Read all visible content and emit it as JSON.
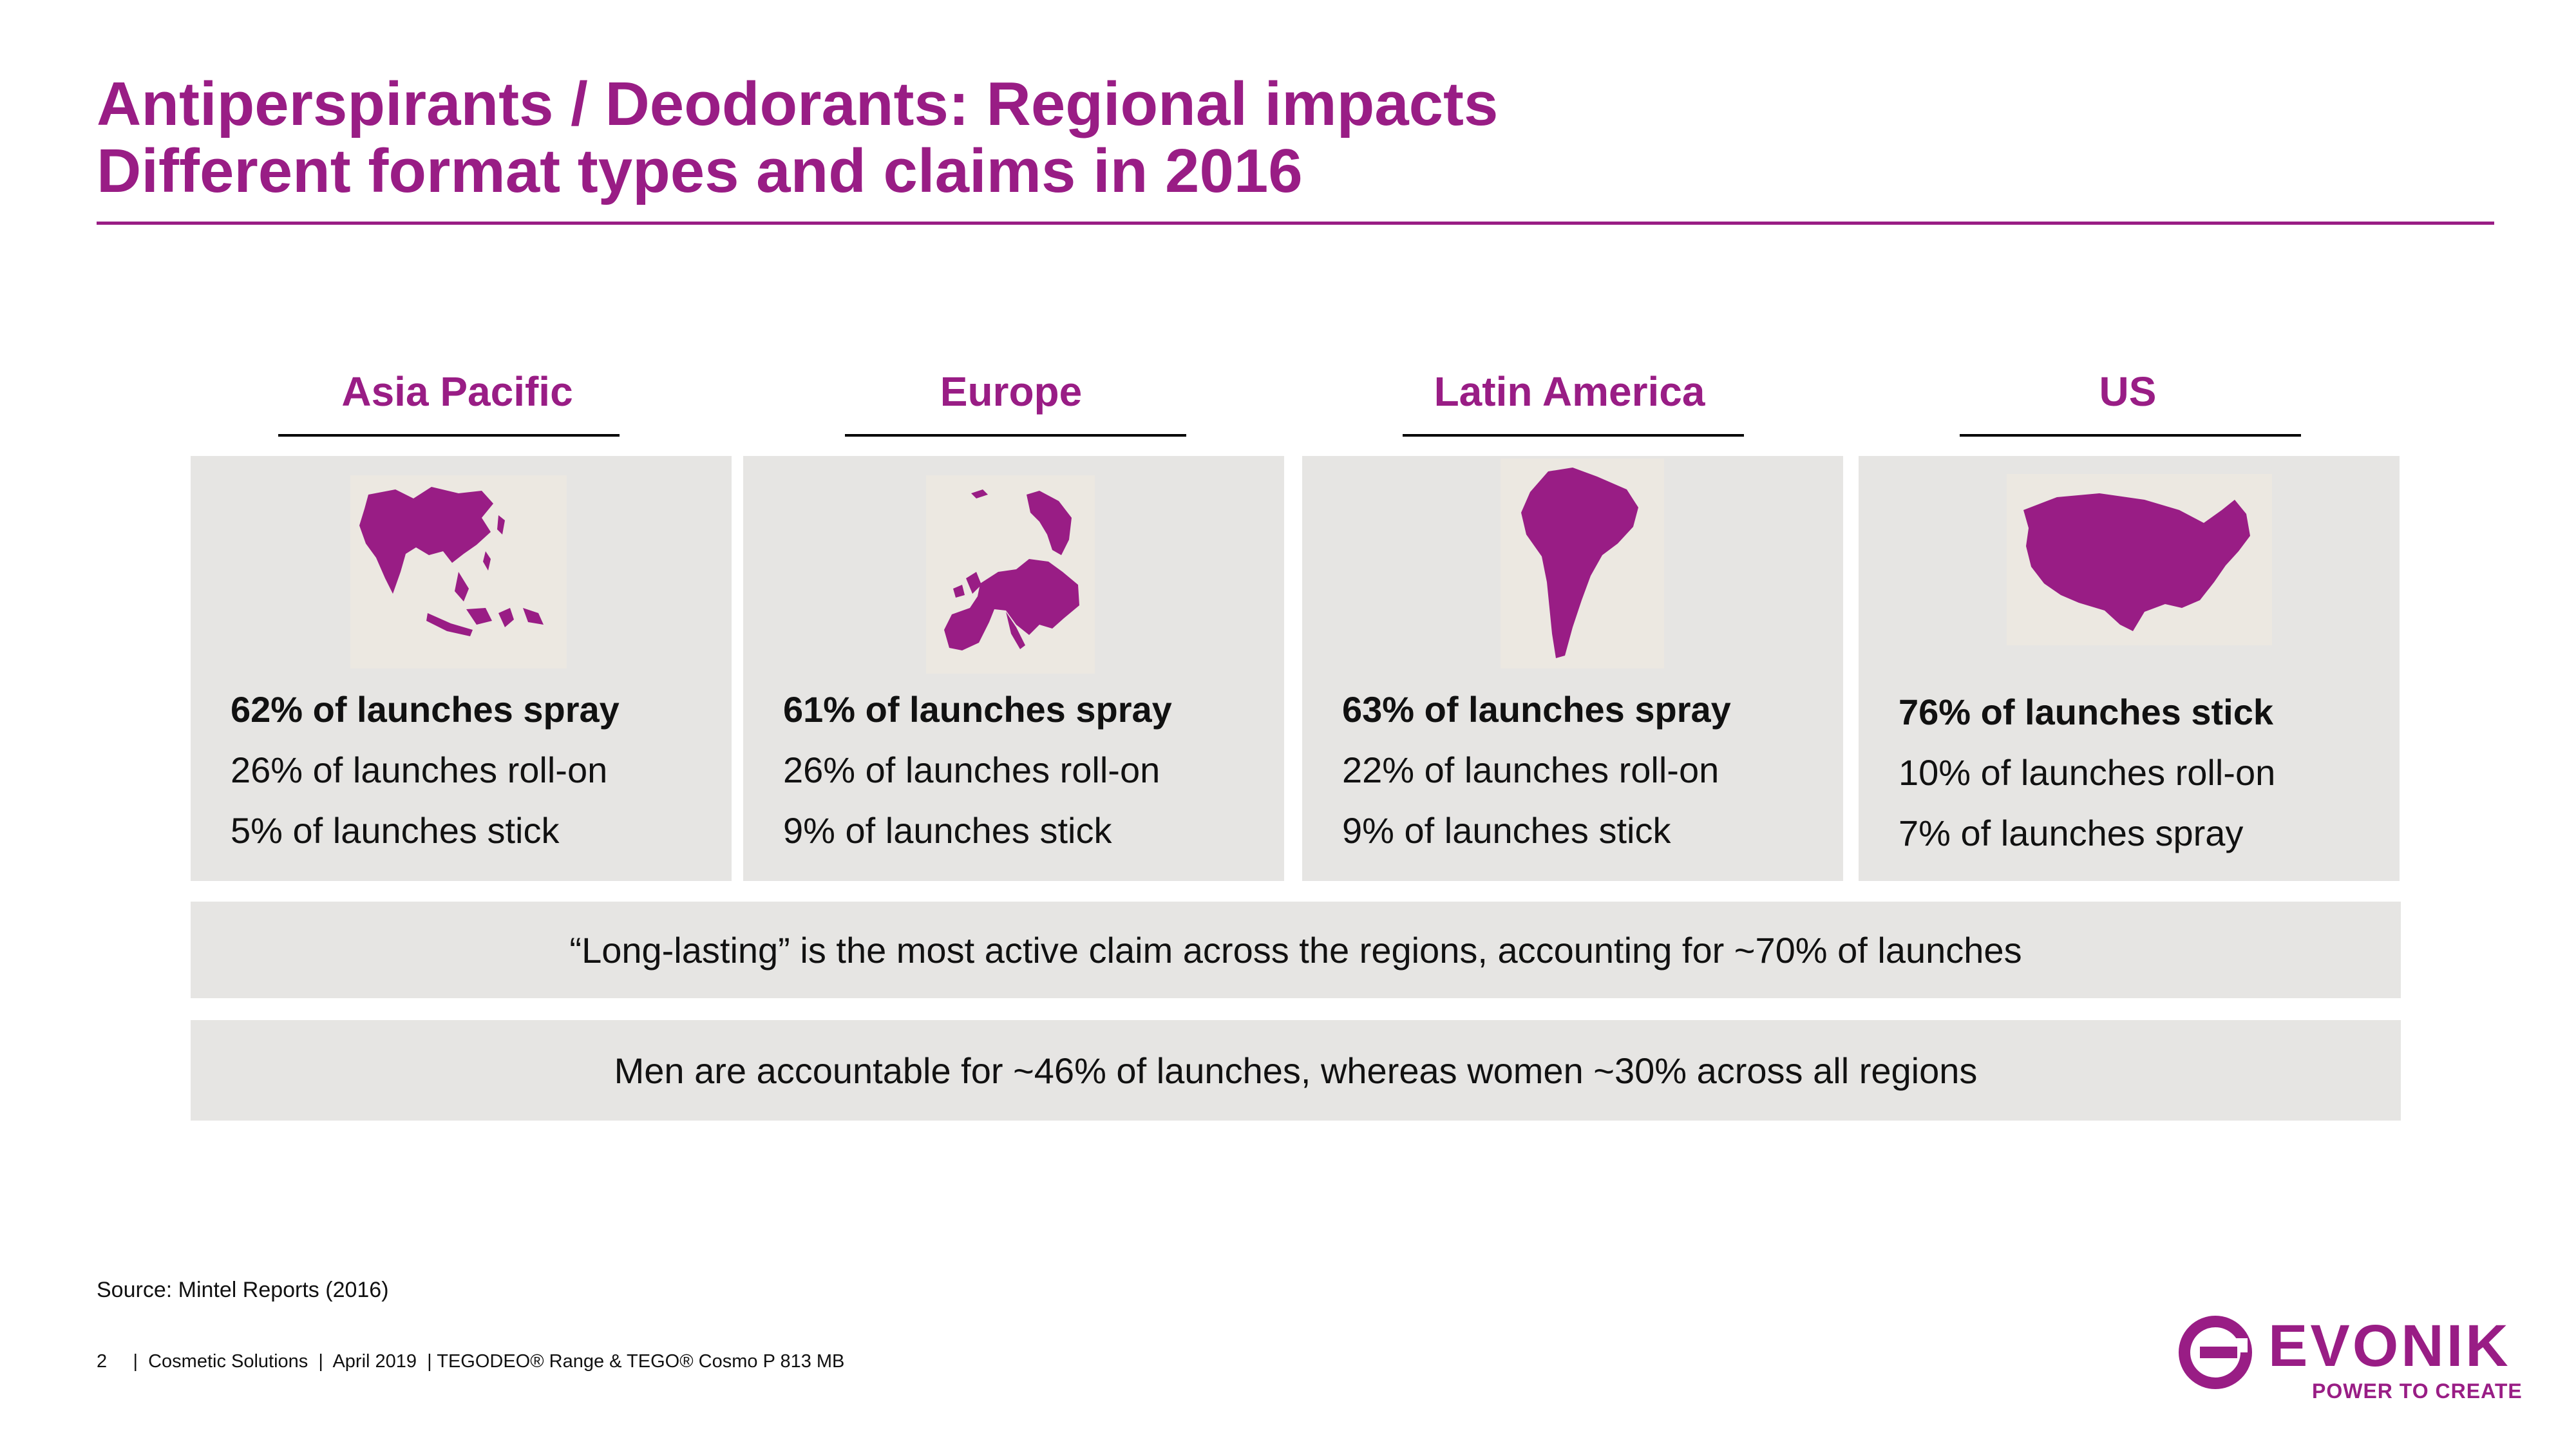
{
  "slide": {
    "title_line1": "Antiperspirants / Deodorants: Regional impacts",
    "title_line2": "Different format types and claims in 2016"
  },
  "regions": [
    {
      "name": "Asia Pacific",
      "map_icon": "asia-pacific-map",
      "stats": [
        "62% of launches spray",
        "26% of launches roll-on",
        "5% of launches stick"
      ]
    },
    {
      "name": "Europe",
      "map_icon": "europe-map",
      "stats": [
        "61% of launches spray",
        "26% of launches roll-on",
        "9% of launches stick"
      ]
    },
    {
      "name": "Latin America",
      "map_icon": "latin-america-map",
      "stats": [
        "63% of launches spray",
        "22% of launches roll-on",
        "9% of launches stick"
      ]
    },
    {
      "name": "US",
      "map_icon": "us-map",
      "stats": [
        "76% of launches stick",
        "10% of launches roll-on",
        "7% of launches spray"
      ]
    }
  ],
  "claims": {
    "long_lasting": "“Long-lasting” is the most active claim across the regions, accounting for ~70% of launches",
    "gender": "Men are accountable for ~46% of launches, whereas women ~30% across all regions"
  },
  "source": "Source: Mintel Reports (2016)",
  "footer": {
    "page_number": "2",
    "text": "|  Cosmetic Solutions  |  April 2019  | TEGODEO® Range & TEGO® Cosmo P 813 MB"
  },
  "logo": {
    "wordmark": "EVONIK",
    "tagline": "POWER TO CREATE"
  },
  "colors": {
    "brand_purple": "#991d85",
    "panel_gray": "#e6e5e3",
    "map_background": "#ece8e1"
  }
}
